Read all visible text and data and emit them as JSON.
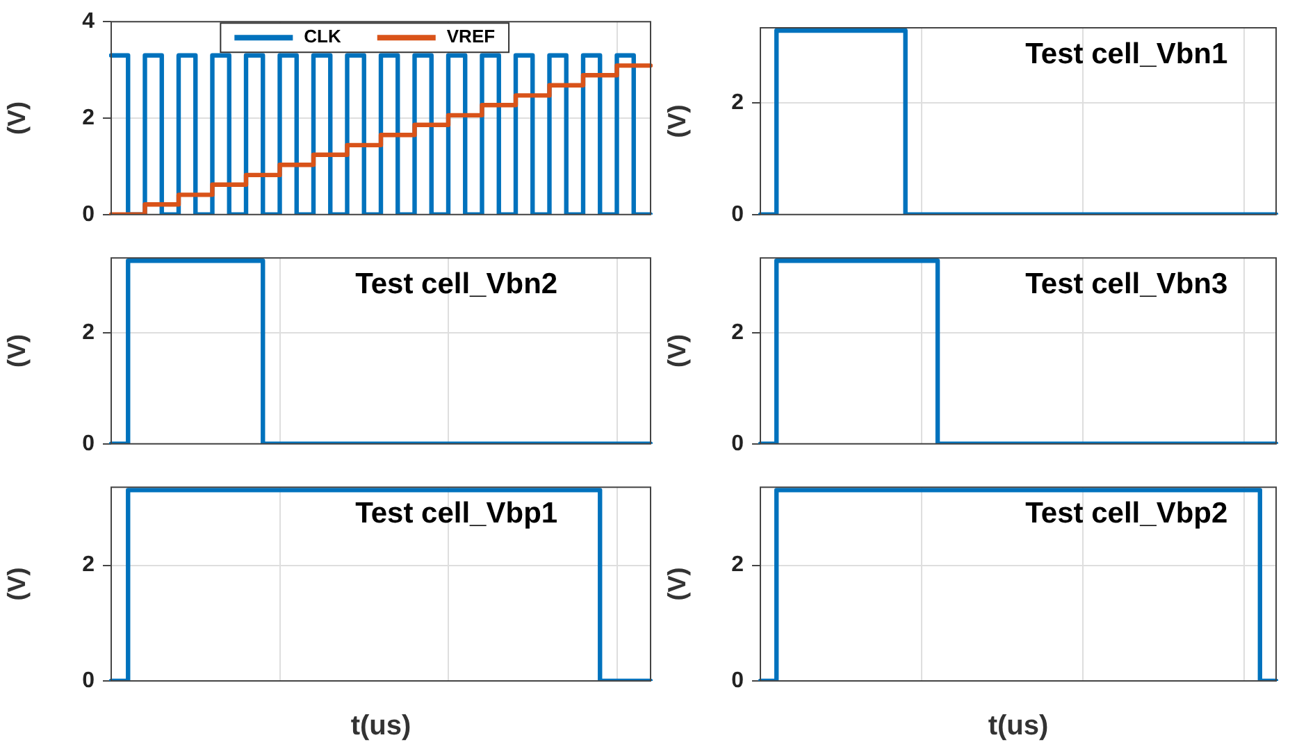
{
  "chart_data": [
    {
      "type": "step",
      "categories": [
        null,
        null,
        null,
        null,
        null,
        null,
        null,
        null,
        null,
        null,
        null,
        null,
        null,
        null,
        null,
        null,
        null,
        null,
        null,
        null,
        null,
        null,
        null,
        null,
        null,
        null,
        null,
        null,
        null,
        null,
        null,
        null,
        null
      ],
      "ylabel": "(V)",
      "ylim": [
        0,
        4
      ],
      "yticks": [
        0,
        2,
        4
      ],
      "grid": true,
      "tick_labels": "y",
      "legend": "top",
      "series": [
        {
          "name": "CLK",
          "color": "#0072bd",
          "values": [
            3.3,
            0,
            3.3,
            0,
            3.3,
            0,
            3.3,
            0,
            3.3,
            0,
            3.3,
            0,
            3.3,
            0,
            3.3,
            0,
            3.3,
            0,
            3.3,
            0,
            3.3,
            0,
            3.3,
            0,
            3.3,
            0,
            3.3,
            0,
            3.3,
            0,
            3.3,
            0,
            0
          ]
        },
        {
          "name": "VREF",
          "color": "#d95319",
          "values": [
            0,
            0,
            0.21,
            0.21,
            0.41,
            0.41,
            0.62,
            0.62,
            0.82,
            0.82,
            1.03,
            1.03,
            1.24,
            1.24,
            1.44,
            1.44,
            1.65,
            1.65,
            1.86,
            1.86,
            2.06,
            2.06,
            2.27,
            2.27,
            2.47,
            2.47,
            2.68,
            2.68,
            2.89,
            2.89,
            3.09,
            3.09,
            3.09
          ]
        }
      ]
    },
    {
      "type": "step",
      "title": "Test cell_Vbn1",
      "categories": [
        null,
        null,
        null,
        null,
        null,
        null,
        null,
        null,
        null,
        null,
        null,
        null,
        null,
        null,
        null,
        null,
        null,
        null,
        null,
        null,
        null,
        null,
        null,
        null,
        null,
        null,
        null,
        null,
        null,
        null,
        null,
        null,
        null
      ],
      "ylabel": "(V)",
      "ylim": [
        0,
        3.35
      ],
      "yticks": [
        0,
        2
      ],
      "grid": true,
      "tick_labels": "y",
      "series": [
        {
          "color": "#0072bd",
          "values": [
            0,
            3.3,
            3.3,
            3.3,
            3.3,
            3.3,
            3.3,
            3.3,
            3.3,
            0,
            0,
            0,
            0,
            0,
            0,
            0,
            0,
            0,
            0,
            0,
            0,
            0,
            0,
            0,
            0,
            0,
            0,
            0,
            0,
            0,
            0,
            0,
            0
          ]
        }
      ]
    },
    {
      "type": "step",
      "title": "Test cell_Vbn2",
      "categories": [
        null,
        null,
        null,
        null,
        null,
        null,
        null,
        null,
        null,
        null,
        null,
        null,
        null,
        null,
        null,
        null,
        null,
        null,
        null,
        null,
        null,
        null,
        null,
        null,
        null,
        null,
        null,
        null,
        null,
        null,
        null,
        null,
        null
      ],
      "ylabel": "(V)",
      "ylim": [
        0,
        3.35
      ],
      "yticks": [
        0,
        2
      ],
      "grid": true,
      "tick_labels": "y",
      "series": [
        {
          "color": "#0072bd",
          "values": [
            0,
            3.3,
            3.3,
            3.3,
            3.3,
            3.3,
            3.3,
            3.3,
            3.3,
            0,
            0,
            0,
            0,
            0,
            0,
            0,
            0,
            0,
            0,
            0,
            0,
            0,
            0,
            0,
            0,
            0,
            0,
            0,
            0,
            0,
            0,
            0,
            0
          ]
        }
      ]
    },
    {
      "type": "step",
      "title": "Test cell_Vbn3",
      "categories": [
        null,
        null,
        null,
        null,
        null,
        null,
        null,
        null,
        null,
        null,
        null,
        null,
        null,
        null,
        null,
        null,
        null,
        null,
        null,
        null,
        null,
        null,
        null,
        null,
        null,
        null,
        null,
        null,
        null,
        null,
        null,
        null,
        null
      ],
      "ylabel": "(V)",
      "ylim": [
        0,
        3.35
      ],
      "yticks": [
        0,
        2
      ],
      "grid": true,
      "tick_labels": "y",
      "series": [
        {
          "color": "#0072bd",
          "values": [
            0,
            3.3,
            3.3,
            3.3,
            3.3,
            3.3,
            3.3,
            3.3,
            3.3,
            3.3,
            3.3,
            0,
            0,
            0,
            0,
            0,
            0,
            0,
            0,
            0,
            0,
            0,
            0,
            0,
            0,
            0,
            0,
            0,
            0,
            0,
            0,
            0,
            0
          ]
        }
      ]
    },
    {
      "type": "step",
      "title": "Test cell_Vbp1",
      "categories": [
        null,
        null,
        null,
        null,
        null,
        null,
        null,
        null,
        null,
        null,
        null,
        null,
        null,
        null,
        null,
        null,
        null,
        null,
        null,
        null,
        null,
        null,
        null,
        null,
        null,
        null,
        null,
        null,
        null,
        null,
        null,
        null,
        null
      ],
      "xlabel": "t(us)",
      "ylabel": "(V)",
      "ylim": [
        0,
        3.35
      ],
      "yticks": [
        0,
        2
      ],
      "grid": true,
      "tick_labels": "y",
      "series": [
        {
          "color": "#0072bd",
          "values": [
            0,
            3.3,
            3.3,
            3.3,
            3.3,
            3.3,
            3.3,
            3.3,
            3.3,
            3.3,
            3.3,
            3.3,
            3.3,
            3.3,
            3.3,
            3.3,
            3.3,
            3.3,
            3.3,
            3.3,
            3.3,
            3.3,
            3.3,
            3.3,
            3.3,
            3.3,
            3.3,
            3.3,
            3.3,
            0,
            0,
            0,
            0
          ]
        }
      ]
    },
    {
      "type": "step",
      "title": "Test cell_Vbp2",
      "categories": [
        null,
        null,
        null,
        null,
        null,
        null,
        null,
        null,
        null,
        null,
        null,
        null,
        null,
        null,
        null,
        null,
        null,
        null,
        null,
        null,
        null,
        null,
        null,
        null,
        null,
        null,
        null,
        null,
        null,
        null,
        null,
        null,
        null
      ],
      "xlabel": "t(us)",
      "ylabel": "(V)",
      "ylim": [
        0,
        3.35
      ],
      "yticks": [
        0,
        2
      ],
      "grid": true,
      "tick_labels": "y",
      "series": [
        {
          "color": "#0072bd",
          "values": [
            0,
            3.3,
            3.3,
            3.3,
            3.3,
            3.3,
            3.3,
            3.3,
            3.3,
            3.3,
            3.3,
            3.3,
            3.3,
            3.3,
            3.3,
            3.3,
            3.3,
            3.3,
            3.3,
            3.3,
            3.3,
            3.3,
            3.3,
            3.3,
            3.3,
            3.3,
            3.3,
            3.3,
            3.3,
            3.3,
            3.3,
            0,
            0
          ]
        }
      ]
    }
  ]
}
